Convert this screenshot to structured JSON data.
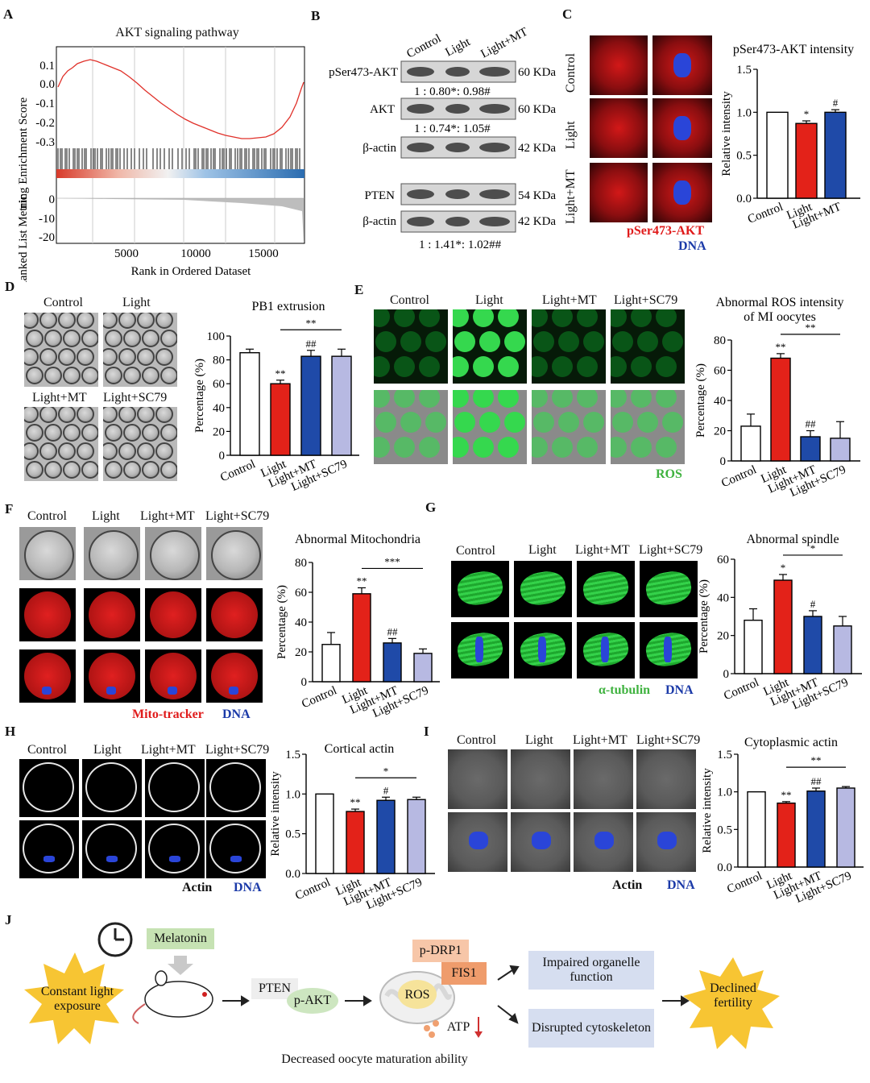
{
  "panels": {
    "A": {
      "label": "A",
      "title": "AKT signaling pathway",
      "ylabel_top": "ning Enrichment Score",
      "ylabel_bottom": "Ranked List Metric",
      "yticks_top": [
        "0.1",
        "0.0",
        "-0.1",
        "-0.2",
        "-0.3"
      ],
      "yticks_bottom": [
        "0",
        "-10",
        "-20"
      ],
      "xticks": [
        "5000",
        "10000",
        "15000"
      ],
      "xlabel": "Rank in Ordered Dataset"
    },
    "B": {
      "label": "B",
      "lanes": [
        "Control",
        "Light",
        "Light+MT"
      ],
      "rows": [
        {
          "name": "pSer473-AKT",
          "kda": "60 KDa"
        },
        {
          "name": "AKT",
          "kda": "60 KDa"
        },
        {
          "name": "β-actin",
          "kda": "42 KDa"
        },
        {
          "name": "PTEN",
          "kda": "54 KDa"
        },
        {
          "name": "β-actin",
          "kda": "42 KDa"
        }
      ],
      "ratio1": "1 : 0.80*: 0.98#",
      "ratio2": "1 : 0.74*: 1.05#",
      "ratio3": "1 : 1.41*: 1.02##"
    },
    "C": {
      "label": "C",
      "rows": [
        "Control",
        "Light",
        "Light+MT"
      ],
      "stain1": "pSer473-AKT",
      "stain2": "DNA"
    },
    "D": {
      "label": "D",
      "img_labels": [
        "Control",
        "Light",
        "Light+MT",
        "Light+SC79"
      ]
    },
    "E": {
      "label": "E",
      "img_labels": [
        "Control",
        "Light",
        "Light+MT",
        "Light+SC79"
      ],
      "stain": "ROS"
    },
    "F": {
      "label": "F",
      "img_labels": [
        "Control",
        "Light",
        "Light+MT",
        "Light+SC79"
      ],
      "stain1": "Mito-tracker",
      "stain2": "DNA"
    },
    "G": {
      "label": "G",
      "img_labels": [
        "Control",
        "Light",
        "Light+MT",
        "Light+SC79"
      ],
      "stain1": "α-tubulin",
      "stain2": "DNA"
    },
    "H": {
      "label": "H",
      "img_labels": [
        "Control",
        "Light",
        "Light+MT",
        "Light+SC79"
      ],
      "stain1": "Actin",
      "stain2": "DNA"
    },
    "I": {
      "label": "I",
      "img_labels": [
        "Control",
        "Light",
        "Light+MT",
        "Light+SC79"
      ],
      "stain1": "Actin",
      "stain2": "DNA"
    },
    "J": {
      "label": "J",
      "melatonin": "Melatonin",
      "constant_light": "Constant light exposure",
      "pten": "PTEN",
      "pakt": "p-AKT",
      "pdrp1": "p-DRP1",
      "fis1": "FIS1",
      "ros": "ROS",
      "atp": "ATP",
      "impaired": "Impaired organelle function",
      "disrupted": "Disrupted cytoskeleton",
      "declined": "Declined fertility",
      "decreased": "Decreased oocyte maturation ability"
    }
  },
  "chart_data": [
    {
      "id": "C",
      "type": "bar",
      "title": "pSer473-AKT intensity",
      "ylabel": "Relative intensity",
      "categories": [
        "Control",
        "Light",
        "Light+MT"
      ],
      "values": [
        1.0,
        0.87,
        1.0
      ],
      "errors": [
        0,
        0.03,
        0.03
      ],
      "ylim": [
        0,
        1.5
      ],
      "yticks": [
        "0.0",
        "0.5",
        "1.0",
        "1.5"
      ],
      "ytick_vals": [
        0,
        0.5,
        1.0,
        1.5
      ],
      "sig": [
        "",
        "*",
        "#"
      ],
      "colors": [
        "#ffffff",
        "#e32219",
        "#1f4aa8"
      ]
    },
    {
      "id": "D",
      "type": "bar",
      "title": "PB1 extrusion",
      "ylabel": "Percentage (%)",
      "categories": [
        "Control",
        "Light",
        "Light+MT",
        "Light+SC79"
      ],
      "values": [
        86,
        60,
        83,
        83
      ],
      "errors": [
        3,
        3,
        5,
        6
      ],
      "ylim": [
        0,
        100
      ],
      "yticks": [
        "0",
        "20",
        "40",
        "60",
        "80",
        "100"
      ],
      "ytick_vals": [
        0,
        20,
        40,
        60,
        80,
        100
      ],
      "sig": [
        "",
        "**",
        "##",
        ""
      ],
      "bracket": "**",
      "colors": [
        "#ffffff",
        "#e32219",
        "#1f4aa8",
        "#b7b9e2"
      ]
    },
    {
      "id": "E",
      "type": "bar",
      "title": "Abnormal ROS intensity of MI oocytes",
      "ylabel": "Percentage (%)",
      "categories": [
        "Control",
        "Light",
        "Light+MT",
        "Light+SC79"
      ],
      "values": [
        23,
        68,
        16,
        15
      ],
      "errors": [
        8,
        3,
        4,
        11
      ],
      "ylim": [
        0,
        80
      ],
      "yticks": [
        "0",
        "20",
        "40",
        "60",
        "80"
      ],
      "ytick_vals": [
        0,
        20,
        40,
        60,
        80
      ],
      "sig": [
        "",
        "**",
        "##",
        ""
      ],
      "bracket": "**",
      "colors": [
        "#ffffff",
        "#e32219",
        "#1f4aa8",
        "#b7b9e2"
      ]
    },
    {
      "id": "F",
      "type": "bar",
      "title": "Abnormal Mitochondria",
      "ylabel": "Percentage (%)",
      "categories": [
        "Control",
        "Light",
        "Light+MT",
        "Light+SC79"
      ],
      "values": [
        25,
        59,
        26,
        19
      ],
      "errors": [
        8,
        4,
        3,
        3
      ],
      "ylim": [
        0,
        80
      ],
      "yticks": [
        "0",
        "20",
        "40",
        "60",
        "80"
      ],
      "ytick_vals": [
        0,
        20,
        40,
        60,
        80
      ],
      "sig": [
        "",
        "**",
        "##",
        ""
      ],
      "bracket": "***",
      "colors": [
        "#ffffff",
        "#e32219",
        "#1f4aa8",
        "#b7b9e2"
      ]
    },
    {
      "id": "G",
      "type": "bar",
      "title": "Abnormal spindle",
      "ylabel": "Percentage (%)",
      "categories": [
        "Control",
        "Light",
        "Light+MT",
        "Light+SC79"
      ],
      "values": [
        28,
        49,
        30,
        25
      ],
      "errors": [
        6,
        3,
        3,
        5
      ],
      "ylim": [
        0,
        60
      ],
      "yticks": [
        "0",
        "20",
        "40",
        "60"
      ],
      "ytick_vals": [
        0,
        20,
        40,
        60
      ],
      "sig": [
        "",
        "*",
        "#",
        ""
      ],
      "bracket": "*",
      "colors": [
        "#ffffff",
        "#e32219",
        "#1f4aa8",
        "#b7b9e2"
      ]
    },
    {
      "id": "H",
      "type": "bar",
      "title": "Cortical actin",
      "ylabel": "Relative intensity",
      "categories": [
        "Control",
        "Light",
        "Light+MT",
        "Light+SC79"
      ],
      "values": [
        1.0,
        0.78,
        0.92,
        0.93
      ],
      "errors": [
        0,
        0.03,
        0.04,
        0.03
      ],
      "ylim": [
        0,
        1.5
      ],
      "yticks": [
        "0.0",
        "0.5",
        "1.0",
        "1.5"
      ],
      "ytick_vals": [
        0,
        0.5,
        1.0,
        1.5
      ],
      "sig": [
        "",
        "**",
        "#",
        ""
      ],
      "bracket": "*",
      "colors": [
        "#ffffff",
        "#e32219",
        "#1f4aa8",
        "#b7b9e2"
      ]
    },
    {
      "id": "I",
      "type": "bar",
      "title": "Cytoplasmic actin",
      "ylabel": "Relative intensity",
      "categories": [
        "Control",
        "Light",
        "Light+MT",
        "Light+SC79"
      ],
      "values": [
        1.0,
        0.85,
        1.01,
        1.05
      ],
      "errors": [
        0,
        0.02,
        0.04,
        0.02
      ],
      "ylim": [
        0,
        1.5
      ],
      "yticks": [
        "0.0",
        "0.5",
        "1.0",
        "1.5"
      ],
      "ytick_vals": [
        0,
        0.5,
        1.0,
        1.5
      ],
      "sig": [
        "",
        "**",
        "##",
        ""
      ],
      "bracket": "**",
      "colors": [
        "#ffffff",
        "#e32219",
        "#1f4aa8",
        "#b7b9e2"
      ]
    }
  ]
}
